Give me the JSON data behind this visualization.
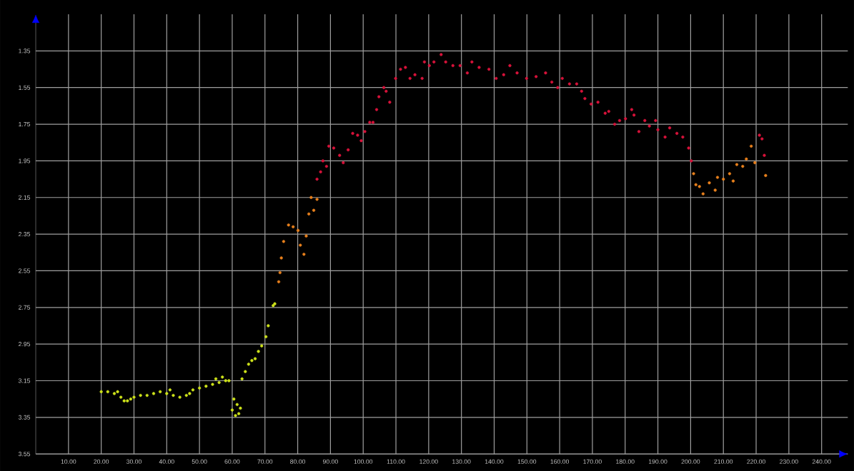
{
  "chart_data": {
    "type": "scatter",
    "marker": "circle",
    "grid": true,
    "xlim": [
      0,
      248
    ],
    "ylim": [
      3.55,
      1.15
    ],
    "xticks": [
      {
        "value": 10,
        "label": "10.00"
      },
      {
        "value": 20,
        "label": "20.00"
      },
      {
        "value": 30,
        "label": "30.00"
      },
      {
        "value": 40,
        "label": "40.00"
      },
      {
        "value": 50,
        "label": "50.00"
      },
      {
        "value": 60,
        "label": "60.00"
      },
      {
        "value": 70,
        "label": "70.00"
      },
      {
        "value": 80,
        "label": "80.00"
      },
      {
        "value": 90,
        "label": "90.00"
      },
      {
        "value": 100,
        "label": "100.00"
      },
      {
        "value": 110,
        "label": "110.00"
      },
      {
        "value": 120,
        "label": "120.00"
      },
      {
        "value": 130,
        "label": "130.00"
      },
      {
        "value": 140,
        "label": "140.00"
      },
      {
        "value": 150,
        "label": "150.00"
      },
      {
        "value": 160,
        "label": "160.00"
      },
      {
        "value": 170,
        "label": "170.00"
      },
      {
        "value": 180,
        "label": "180.00"
      },
      {
        "value": 190,
        "label": "190.00"
      },
      {
        "value": 200,
        "label": "200.00"
      },
      {
        "value": 210,
        "label": "210.00"
      },
      {
        "value": 220,
        "label": "220.00"
      },
      {
        "value": 230,
        "label": "230.00"
      },
      {
        "value": 240,
        "label": "240.00"
      }
    ],
    "yticks": [
      1.35,
      1.55,
      1.75,
      1.95,
      2.15,
      2.35,
      2.55,
      2.75,
      2.95,
      3.15,
      3.35,
      3.55
    ],
    "series": [
      {
        "color": "#cde21a",
        "x": [
          20,
          22,
          24,
          25,
          26,
          27,
          28,
          29,
          30,
          32,
          34,
          36,
          38,
          40,
          41,
          42,
          44,
          46,
          47,
          48,
          50,
          52,
          54,
          55,
          56,
          57,
          58,
          59,
          60,
          60.5,
          61,
          61.5,
          62,
          62.5,
          63,
          64,
          65,
          66,
          67,
          68,
          69,
          70.3,
          71,
          72.5,
          73
        ],
        "values": [
          3.21,
          3.21,
          3.22,
          3.21,
          3.24,
          3.26,
          3.26,
          3.25,
          3.24,
          3.23,
          3.23,
          3.22,
          3.21,
          3.22,
          3.2,
          3.23,
          3.24,
          3.23,
          3.22,
          3.2,
          3.19,
          3.18,
          3.17,
          3.14,
          3.16,
          3.13,
          3.15,
          3.15,
          3.31,
          3.25,
          3.34,
          3.28,
          3.33,
          3.3,
          3.14,
          3.1,
          3.06,
          3.04,
          3.03,
          2.99,
          2.96,
          2.91,
          2.85,
          2.74,
          2.73
        ]
      },
      {
        "color": "#e8801c",
        "x": [
          74.2,
          74.6,
          75.0,
          75.7,
          77.2,
          78.6,
          80.1,
          80.8,
          81.9,
          82.6,
          83.4,
          84.1,
          84.9,
          85.9,
          200.9,
          201.6,
          202.7,
          203.8,
          205.7,
          207.5,
          208.2,
          210.0,
          211.9,
          213.0,
          214.1,
          215.9,
          217.0,
          218.5,
          219.6,
          222.9
        ],
        "values": [
          2.61,
          2.56,
          2.48,
          2.39,
          2.3,
          2.31,
          2.33,
          2.41,
          2.46,
          2.36,
          2.24,
          2.15,
          2.22,
          2.16,
          2.02,
          2.08,
          2.09,
          2.13,
          2.07,
          2.11,
          2.04,
          2.05,
          2.02,
          2.06,
          1.97,
          1.98,
          1.94,
          1.87,
          1.96,
          2.03
        ]
      },
      {
        "color": "#d8123a",
        "x": [
          85.9,
          87.0,
          87.7,
          88.8,
          89.5,
          91.0,
          92.8,
          93.9,
          95.4,
          96.8,
          98.3,
          99.4,
          100.5,
          102.0,
          103.0,
          104.1,
          104.8,
          106.3,
          107.0,
          108.1,
          109.9,
          111.4,
          112.9,
          114.3,
          115.8,
          118.0,
          118.7,
          120.2,
          121.6,
          123.8,
          125.2,
          127.4,
          129.6,
          131.8,
          133.2,
          135.4,
          138.4,
          140.6,
          142.9,
          144.8,
          147.0,
          149.9,
          152.8,
          155.7,
          157.6,
          159.4,
          160.8,
          163.0,
          165.2,
          166.7,
          167.7,
          169.6,
          171.7,
          173.9,
          175.0,
          176.8,
          178.3,
          180.1,
          182.0,
          182.7,
          184.2,
          186.0,
          187.4,
          189.3,
          190.0,
          192.2,
          193.6,
          195.8,
          197.6,
          199.4,
          200.2,
          221.0,
          221.8,
          222.5
        ],
        "values": [
          2.05,
          2.01,
          1.95,
          1.98,
          1.87,
          1.88,
          1.92,
          1.96,
          1.89,
          1.8,
          1.81,
          1.84,
          1.79,
          1.74,
          1.74,
          1.67,
          1.6,
          1.55,
          1.57,
          1.63,
          1.5,
          1.45,
          1.44,
          1.5,
          1.48,
          1.5,
          1.41,
          1.43,
          1.41,
          1.37,
          1.41,
          1.43,
          1.43,
          1.47,
          1.41,
          1.44,
          1.45,
          1.5,
          1.48,
          1.43,
          1.47,
          1.5,
          1.49,
          1.47,
          1.52,
          1.55,
          1.5,
          1.53,
          1.53,
          1.57,
          1.61,
          1.64,
          1.63,
          1.69,
          1.68,
          1.75,
          1.73,
          1.72,
          1.67,
          1.7,
          1.79,
          1.73,
          1.76,
          1.73,
          1.78,
          1.82,
          1.77,
          1.8,
          1.82,
          1.88,
          1.95,
          1.81,
          1.83,
          1.92
        ]
      }
    ]
  }
}
